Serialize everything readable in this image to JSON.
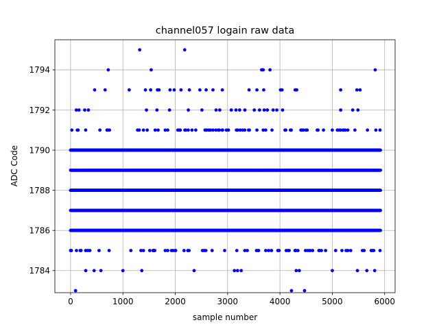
{
  "chart_data": {
    "type": "scatter",
    "title": "channel057 logain raw data",
    "xlabel": "sample number",
    "ylabel": "ADC Code",
    "xlim": [
      -300,
      6200
    ],
    "ylim": [
      1782.9,
      1795.5
    ],
    "xticks": [
      0,
      1000,
      2000,
      3000,
      4000,
      5000,
      6000
    ],
    "yticks": [
      1784,
      1786,
      1788,
      1790,
      1792,
      1794
    ],
    "grid": true,
    "marker_color": "#0000ff",
    "x_range": [
      0,
      5925
    ],
    "dense_levels": [
      1786,
      1787,
      1788,
      1789,
      1790
    ],
    "sparse_levels": [
      {
        "y": 1785,
        "density": 0.08
      },
      {
        "y": 1791,
        "density": 0.09
      }
    ],
    "rare_points": [
      {
        "x": 95,
        "y": 1783
      },
      {
        "x": 4220,
        "y": 1783
      },
      {
        "x": 4470,
        "y": 1783
      },
      {
        "x": 290,
        "y": 1784
      },
      {
        "x": 450,
        "y": 1784
      },
      {
        "x": 580,
        "y": 1784
      },
      {
        "x": 1000,
        "y": 1784
      },
      {
        "x": 1360,
        "y": 1784
      },
      {
        "x": 2360,
        "y": 1784
      },
      {
        "x": 3130,
        "y": 1784
      },
      {
        "x": 3190,
        "y": 1784
      },
      {
        "x": 3260,
        "y": 1784
      },
      {
        "x": 4310,
        "y": 1784
      },
      {
        "x": 4370,
        "y": 1784
      },
      {
        "x": 5000,
        "y": 1784
      },
      {
        "x": 5480,
        "y": 1784
      },
      {
        "x": 5660,
        "y": 1784
      },
      {
        "x": 5810,
        "y": 1784
      },
      {
        "x": 110,
        "y": 1792
      },
      {
        "x": 160,
        "y": 1792
      },
      {
        "x": 270,
        "y": 1792
      },
      {
        "x": 340,
        "y": 1792
      },
      {
        "x": 1450,
        "y": 1792
      },
      {
        "x": 1650,
        "y": 1792
      },
      {
        "x": 1890,
        "y": 1792
      },
      {
        "x": 2250,
        "y": 1792
      },
      {
        "x": 2510,
        "y": 1792
      },
      {
        "x": 2780,
        "y": 1792
      },
      {
        "x": 2850,
        "y": 1792
      },
      {
        "x": 3070,
        "y": 1792
      },
      {
        "x": 3160,
        "y": 1792
      },
      {
        "x": 3230,
        "y": 1792
      },
      {
        "x": 3330,
        "y": 1792
      },
      {
        "x": 3510,
        "y": 1792
      },
      {
        "x": 3610,
        "y": 1792
      },
      {
        "x": 3700,
        "y": 1792
      },
      {
        "x": 3760,
        "y": 1792
      },
      {
        "x": 3870,
        "y": 1792
      },
      {
        "x": 3940,
        "y": 1792
      },
      {
        "x": 4050,
        "y": 1792
      },
      {
        "x": 5160,
        "y": 1792
      },
      {
        "x": 5390,
        "y": 1792
      },
      {
        "x": 5490,
        "y": 1792
      },
      {
        "x": 460,
        "y": 1793
      },
      {
        "x": 660,
        "y": 1793
      },
      {
        "x": 1120,
        "y": 1793
      },
      {
        "x": 1430,
        "y": 1793
      },
      {
        "x": 1530,
        "y": 1793
      },
      {
        "x": 1660,
        "y": 1793
      },
      {
        "x": 1690,
        "y": 1793
      },
      {
        "x": 1900,
        "y": 1793
      },
      {
        "x": 1980,
        "y": 1793
      },
      {
        "x": 2110,
        "y": 1793
      },
      {
        "x": 2270,
        "y": 1793
      },
      {
        "x": 2470,
        "y": 1793
      },
      {
        "x": 2590,
        "y": 1793
      },
      {
        "x": 2720,
        "y": 1793
      },
      {
        "x": 2900,
        "y": 1793
      },
      {
        "x": 3410,
        "y": 1793
      },
      {
        "x": 3560,
        "y": 1793
      },
      {
        "x": 3690,
        "y": 1793
      },
      {
        "x": 4010,
        "y": 1793
      },
      {
        "x": 4040,
        "y": 1793
      },
      {
        "x": 4290,
        "y": 1793
      },
      {
        "x": 4320,
        "y": 1793
      },
      {
        "x": 5160,
        "y": 1793
      },
      {
        "x": 5470,
        "y": 1793
      },
      {
        "x": 5530,
        "y": 1793
      },
      {
        "x": 720,
        "y": 1794
      },
      {
        "x": 1540,
        "y": 1794
      },
      {
        "x": 3650,
        "y": 1794
      },
      {
        "x": 3680,
        "y": 1794
      },
      {
        "x": 3810,
        "y": 1794
      },
      {
        "x": 5820,
        "y": 1794
      },
      {
        "x": 1320,
        "y": 1795
      },
      {
        "x": 2180,
        "y": 1795
      }
    ]
  }
}
